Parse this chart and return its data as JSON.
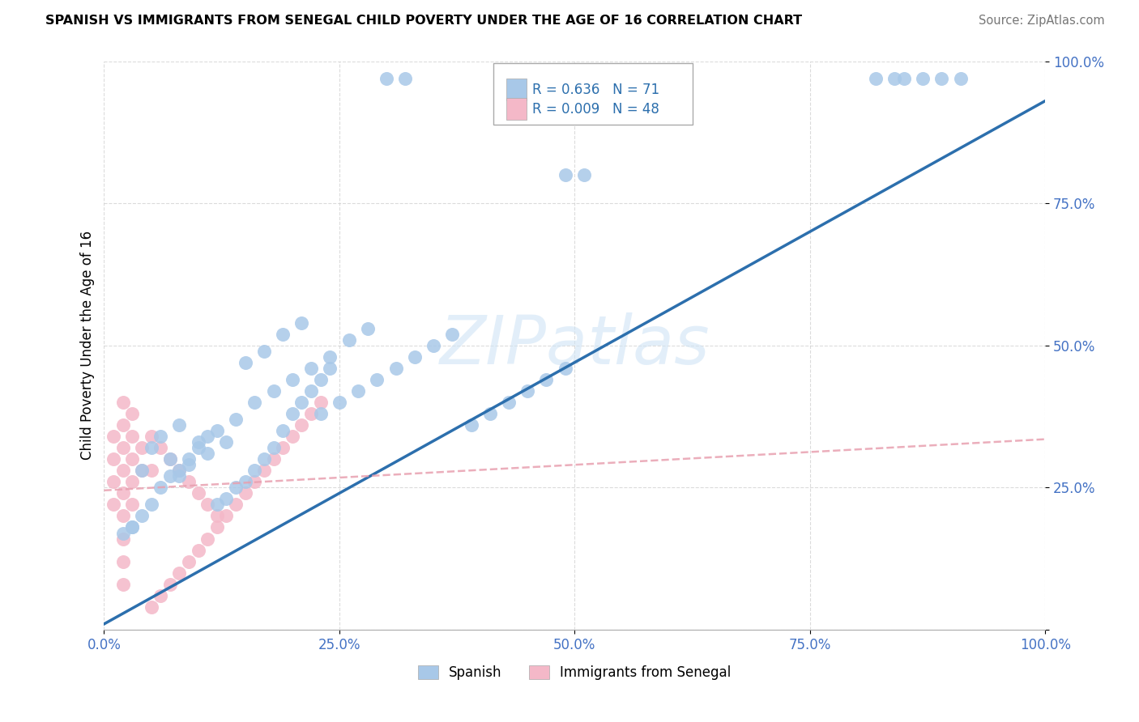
{
  "title": "SPANISH VS IMMIGRANTS FROM SENEGAL CHILD POVERTY UNDER THE AGE OF 16 CORRELATION CHART",
  "source": "Source: ZipAtlas.com",
  "ylabel": "Child Poverty Under the Age of 16",
  "xlim": [
    0,
    1.0
  ],
  "ylim": [
    0,
    1.0
  ],
  "spanish_R": 0.636,
  "spanish_N": 71,
  "senegal_R": 0.009,
  "senegal_N": 48,
  "legend_label1": "Spanish",
  "legend_label2": "Immigrants from Senegal",
  "spanish_color": "#a8c8e8",
  "senegal_color": "#f4b8c8",
  "spanish_line_color": "#2c6fad",
  "senegal_line_color": "#e8a0b0",
  "background_color": "#ffffff",
  "spanish_x": [
    0.3,
    0.32,
    0.05,
    0.06,
    0.08,
    0.04,
    0.03,
    0.07,
    0.1,
    0.12,
    0.08,
    0.09,
    0.11,
    0.13,
    0.14,
    0.16,
    0.18,
    0.2,
    0.22,
    0.24,
    0.26,
    0.28,
    0.15,
    0.17,
    0.19,
    0.21,
    0.23,
    0.25,
    0.27,
    0.29,
    0.31,
    0.33,
    0.35,
    0.37,
    0.39,
    0.41,
    0.43,
    0.45,
    0.47,
    0.49,
    0.02,
    0.03,
    0.04,
    0.05,
    0.06,
    0.07,
    0.08,
    0.09,
    0.1,
    0.11,
    0.12,
    0.13,
    0.14,
    0.15,
    0.16,
    0.17,
    0.18,
    0.19,
    0.2,
    0.21,
    0.22,
    0.23,
    0.24,
    0.82,
    0.84,
    0.49,
    0.51,
    0.85,
    0.87,
    0.89,
    0.91
  ],
  "spanish_y": [
    0.97,
    0.97,
    0.32,
    0.34,
    0.36,
    0.28,
    0.18,
    0.3,
    0.33,
    0.35,
    0.27,
    0.29,
    0.31,
    0.33,
    0.37,
    0.4,
    0.42,
    0.44,
    0.46,
    0.48,
    0.51,
    0.53,
    0.47,
    0.49,
    0.52,
    0.54,
    0.38,
    0.4,
    0.42,
    0.44,
    0.46,
    0.48,
    0.5,
    0.52,
    0.36,
    0.38,
    0.4,
    0.42,
    0.44,
    0.46,
    0.17,
    0.18,
    0.2,
    0.22,
    0.25,
    0.27,
    0.28,
    0.3,
    0.32,
    0.34,
    0.22,
    0.23,
    0.25,
    0.26,
    0.28,
    0.3,
    0.32,
    0.35,
    0.38,
    0.4,
    0.42,
    0.44,
    0.46,
    0.97,
    0.97,
    0.8,
    0.8,
    0.97,
    0.97,
    0.97,
    0.97
  ],
  "senegal_x": [
    0.01,
    0.01,
    0.01,
    0.01,
    0.02,
    0.02,
    0.02,
    0.02,
    0.02,
    0.02,
    0.02,
    0.02,
    0.02,
    0.03,
    0.03,
    0.03,
    0.03,
    0.03,
    0.04,
    0.04,
    0.05,
    0.05,
    0.06,
    0.07,
    0.08,
    0.09,
    0.1,
    0.11,
    0.12,
    0.05,
    0.06,
    0.07,
    0.08,
    0.09,
    0.1,
    0.11,
    0.12,
    0.13,
    0.14,
    0.15,
    0.16,
    0.17,
    0.18,
    0.19,
    0.2,
    0.21,
    0.22,
    0.23
  ],
  "senegal_y": [
    0.34,
    0.3,
    0.26,
    0.22,
    0.4,
    0.36,
    0.32,
    0.28,
    0.24,
    0.2,
    0.16,
    0.12,
    0.08,
    0.38,
    0.34,
    0.3,
    0.26,
    0.22,
    0.32,
    0.28,
    0.34,
    0.28,
    0.32,
    0.3,
    0.28,
    0.26,
    0.24,
    0.22,
    0.2,
    0.04,
    0.06,
    0.08,
    0.1,
    0.12,
    0.14,
    0.16,
    0.18,
    0.2,
    0.22,
    0.24,
    0.26,
    0.28,
    0.3,
    0.32,
    0.34,
    0.36,
    0.38,
    0.4
  ],
  "spanish_line_x": [
    0.0,
    1.0
  ],
  "spanish_line_y": [
    0.01,
    0.93
  ],
  "senegal_line_x": [
    0.0,
    1.0
  ],
  "senegal_line_y": [
    0.245,
    0.335
  ]
}
